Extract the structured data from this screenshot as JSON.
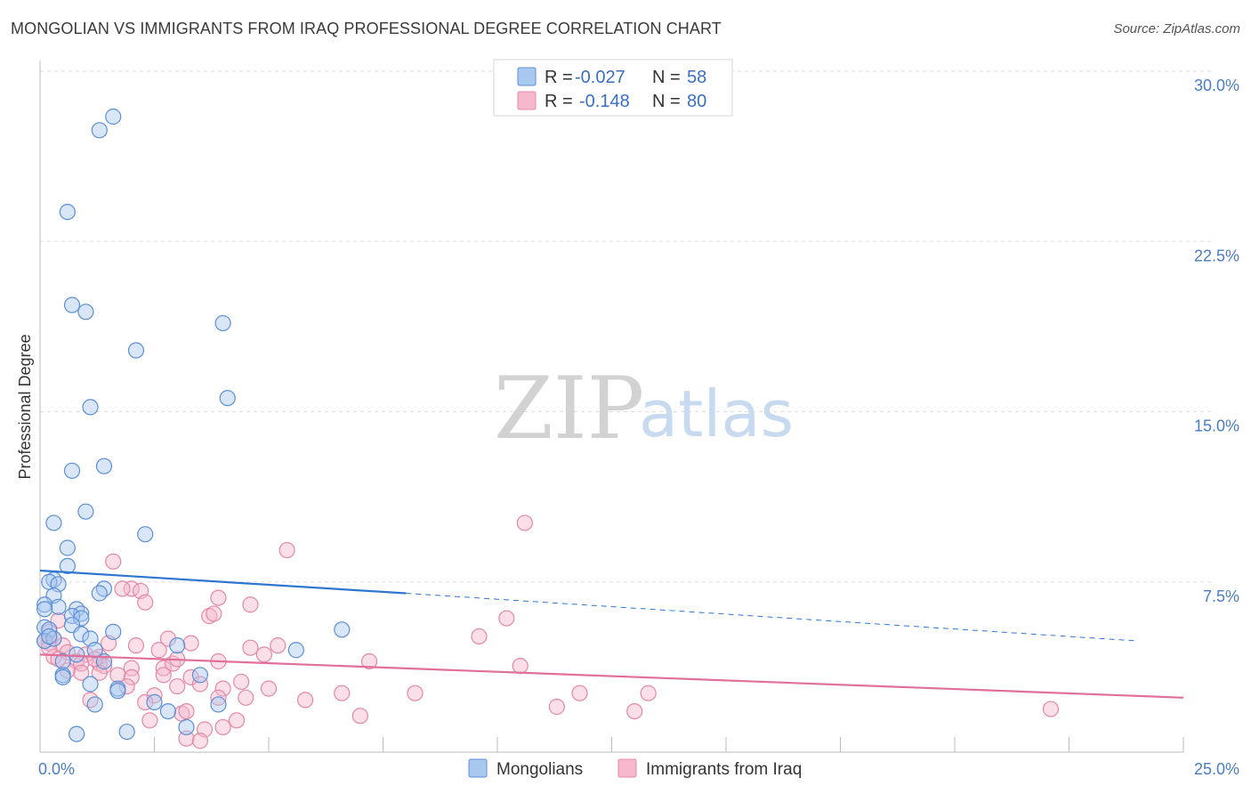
{
  "header": {
    "title": "MONGOLIAN VS IMMIGRANTS FROM IRAQ PROFESSIONAL DEGREE CORRELATION CHART",
    "source": "Source: ZipAtlas.com"
  },
  "watermark": {
    "zip": "ZIP",
    "atlas": "atlas"
  },
  "colors": {
    "mongolians_fill": "#a9c8f0",
    "mongolians_stroke": "#5b8fd6",
    "mongolians_line": "#2f76cf",
    "iraq_fill": "#f5b8cc",
    "iraq_stroke": "#e487a7",
    "iraq_line": "#e0709a",
    "grid": "#dddddd",
    "tick_text": "#4a7cc4"
  },
  "legend": {
    "rows": [
      {
        "r_label": "R =",
        "r_value": "-0.027",
        "n_label": "N =",
        "n_value": "58"
      },
      {
        "r_label": "R =",
        "r_value": "-0.148",
        "n_label": "N =",
        "n_value": "80"
      }
    ]
  },
  "chart_data": {
    "type": "scatter",
    "title": "MONGOLIAN VS IMMIGRANTS FROM IRAQ PROFESSIONAL DEGREE CORRELATION CHART",
    "ylabel": "Professional Degree",
    "xlabel": "",
    "xlim": [
      0,
      25
    ],
    "ylim": [
      0,
      30
    ],
    "x_tick_labels": [
      {
        "value": 0,
        "label": "0.0%"
      },
      {
        "value": 25,
        "label": "25.0%"
      }
    ],
    "y_tick_labels": [
      {
        "value": 7.5,
        "label": "7.5%"
      },
      {
        "value": 15,
        "label": "15.0%"
      },
      {
        "value": 22.5,
        "label": "22.5%"
      },
      {
        "value": 30,
        "label": "30.0%"
      }
    ],
    "series": [
      {
        "name": "Mongolians",
        "r": -0.027,
        "n": 58,
        "trend": {
          "x0": 0,
          "y0": 8.0,
          "x1": 8.0,
          "y1": 7.0,
          "dash_to_x": 24.0,
          "dash_to_y": 4.9
        },
        "points": [
          [
            1.6,
            28.0
          ],
          [
            1.3,
            27.4
          ],
          [
            0.6,
            23.8
          ],
          [
            0.7,
            19.7
          ],
          [
            1.0,
            19.4
          ],
          [
            4.0,
            18.9
          ],
          [
            2.1,
            17.7
          ],
          [
            4.1,
            15.6
          ],
          [
            1.1,
            15.2
          ],
          [
            1.4,
            12.6
          ],
          [
            0.7,
            12.4
          ],
          [
            1.0,
            10.6
          ],
          [
            0.3,
            10.1
          ],
          [
            2.3,
            9.6
          ],
          [
            0.6,
            9.0
          ],
          [
            0.6,
            8.2
          ],
          [
            0.3,
            7.6
          ],
          [
            0.2,
            7.5
          ],
          [
            0.4,
            7.4
          ],
          [
            1.4,
            7.2
          ],
          [
            1.3,
            7.0
          ],
          [
            0.3,
            6.9
          ],
          [
            0.1,
            6.5
          ],
          [
            0.4,
            6.4
          ],
          [
            0.8,
            6.3
          ],
          [
            0.1,
            6.3
          ],
          [
            0.9,
            6.1
          ],
          [
            0.7,
            6.0
          ],
          [
            0.9,
            5.9
          ],
          [
            0.7,
            5.6
          ],
          [
            0.1,
            5.5
          ],
          [
            0.2,
            5.4
          ],
          [
            1.6,
            5.3
          ],
          [
            0.9,
            5.2
          ],
          [
            6.6,
            5.4
          ],
          [
            1.1,
            5.0
          ],
          [
            3.0,
            4.7
          ],
          [
            5.6,
            4.5
          ],
          [
            1.2,
            4.5
          ],
          [
            0.8,
            4.3
          ],
          [
            0.5,
            4.0
          ],
          [
            1.4,
            4.0
          ],
          [
            0.1,
            4.9
          ],
          [
            0.3,
            5.0
          ],
          [
            3.5,
            3.4
          ],
          [
            0.5,
            3.4
          ],
          [
            0.5,
            3.3
          ],
          [
            1.1,
            3.0
          ],
          [
            1.7,
            2.8
          ],
          [
            1.7,
            2.7
          ],
          [
            1.2,
            2.1
          ],
          [
            2.5,
            2.2
          ],
          [
            2.8,
            1.8
          ],
          [
            3.9,
            2.1
          ],
          [
            3.2,
            1.1
          ],
          [
            0.8,
            0.8
          ],
          [
            1.9,
            0.9
          ],
          [
            0.2,
            5.1
          ]
        ]
      },
      {
        "name": "Immigrants from Iraq",
        "r": -0.148,
        "n": 80,
        "trend": {
          "x0": 0,
          "y0": 4.3,
          "x1": 25.0,
          "y1": 2.4
        },
        "points": [
          [
            10.6,
            10.1
          ],
          [
            5.4,
            8.9
          ],
          [
            1.6,
            8.4
          ],
          [
            2.0,
            7.2
          ],
          [
            2.2,
            7.1
          ],
          [
            1.8,
            7.2
          ],
          [
            3.9,
            6.8
          ],
          [
            4.6,
            6.5
          ],
          [
            2.3,
            6.6
          ],
          [
            3.7,
            6.0
          ],
          [
            3.8,
            6.1
          ],
          [
            10.2,
            5.9
          ],
          [
            0.4,
            5.8
          ],
          [
            0.2,
            5.3
          ],
          [
            9.6,
            5.1
          ],
          [
            0.3,
            5.0
          ],
          [
            0.1,
            4.9
          ],
          [
            0.2,
            4.8
          ],
          [
            0.5,
            4.7
          ],
          [
            1.5,
            4.8
          ],
          [
            2.1,
            4.7
          ],
          [
            2.8,
            5.0
          ],
          [
            3.3,
            4.8
          ],
          [
            5.2,
            4.7
          ],
          [
            4.6,
            4.6
          ],
          [
            0.6,
            4.4
          ],
          [
            0.3,
            4.2
          ],
          [
            1.0,
            4.3
          ],
          [
            1.3,
            4.2
          ],
          [
            2.6,
            4.5
          ],
          [
            4.9,
            4.3
          ],
          [
            0.8,
            4.0
          ],
          [
            0.9,
            3.9
          ],
          [
            1.3,
            3.9
          ],
          [
            1.4,
            3.8
          ],
          [
            2.0,
            3.7
          ],
          [
            2.7,
            3.7
          ],
          [
            2.9,
            3.9
          ],
          [
            3.0,
            4.1
          ],
          [
            3.9,
            4.0
          ],
          [
            7.2,
            4.0
          ],
          [
            10.5,
            3.8
          ],
          [
            0.6,
            3.6
          ],
          [
            0.9,
            3.5
          ],
          [
            1.3,
            3.5
          ],
          [
            1.7,
            3.4
          ],
          [
            2.0,
            3.3
          ],
          [
            2.7,
            3.4
          ],
          [
            3.3,
            3.3
          ],
          [
            1.9,
            2.9
          ],
          [
            3.0,
            2.9
          ],
          [
            3.5,
            3.0
          ],
          [
            4.0,
            2.8
          ],
          [
            4.4,
            3.1
          ],
          [
            5.0,
            2.8
          ],
          [
            6.6,
            2.6
          ],
          [
            8.2,
            2.6
          ],
          [
            11.8,
            2.6
          ],
          [
            13.3,
            2.6
          ],
          [
            2.5,
            2.5
          ],
          [
            3.9,
            2.4
          ],
          [
            5.8,
            2.3
          ],
          [
            1.1,
            2.3
          ],
          [
            2.3,
            2.2
          ],
          [
            11.3,
            2.0
          ],
          [
            13.0,
            1.8
          ],
          [
            22.1,
            1.9
          ],
          [
            3.1,
            1.7
          ],
          [
            3.2,
            1.8
          ],
          [
            4.3,
            1.4
          ],
          [
            7.0,
            1.6
          ],
          [
            2.4,
            1.4
          ],
          [
            3.6,
            1.0
          ],
          [
            4.0,
            1.1
          ],
          [
            3.2,
            0.6
          ],
          [
            3.5,
            0.5
          ],
          [
            0.2,
            4.6
          ],
          [
            0.4,
            4.1
          ],
          [
            1.2,
            4.1
          ],
          [
            4.5,
            2.4
          ]
        ]
      }
    ],
    "legend_placement": "top-center",
    "grid": true
  },
  "bottom_legend": {
    "items": [
      {
        "label": "Mongolians"
      },
      {
        "label": "Immigrants from Iraq"
      }
    ]
  }
}
